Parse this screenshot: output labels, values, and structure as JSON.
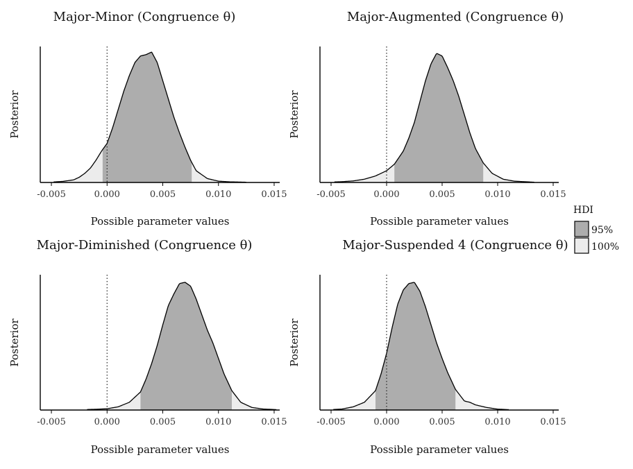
{
  "chart_data": [
    {
      "type": "area",
      "title": "Major-Minor (Congruence θ)",
      "xlabel": "Possible parameter values",
      "ylabel": "Posterior",
      "xlim": [
        -0.006,
        0.0155
      ],
      "xticks": [
        -0.005,
        0.0,
        0.005,
        0.01,
        0.015
      ],
      "xtick_labels": [
        "-0.005",
        "0.000",
        "0.005",
        "0.010",
        "0.015"
      ],
      "reference_line_x": 0,
      "hdi95": [
        -0.0004,
        0.0076
      ],
      "hdi100": [
        -0.0048,
        0.0125
      ],
      "density": {
        "x": [
          -0.0048,
          -0.004,
          -0.003,
          -0.0025,
          -0.002,
          -0.0015,
          -0.001,
          -0.0005,
          0.0,
          0.0005,
          0.001,
          0.0015,
          0.002,
          0.0025,
          0.003,
          0.0035,
          0.004,
          0.0045,
          0.005,
          0.0055,
          0.006,
          0.0065,
          0.007,
          0.0075,
          0.008,
          0.009,
          0.01,
          0.011,
          0.0125
        ],
        "y": [
          0.004,
          0.008,
          0.02,
          0.04,
          0.07,
          0.11,
          0.17,
          0.24,
          0.3,
          0.42,
          0.56,
          0.7,
          0.82,
          0.92,
          0.97,
          0.98,
          1.0,
          0.92,
          0.78,
          0.64,
          0.5,
          0.38,
          0.27,
          0.17,
          0.09,
          0.03,
          0.01,
          0.005,
          0.002
        ]
      }
    },
    {
      "type": "area",
      "title": "Major-Augmented (Congruence θ)",
      "xlabel": "Possible parameter values",
      "ylabel": "Posterior",
      "xlim": [
        -0.006,
        0.0155
      ],
      "xticks": [
        -0.005,
        0.0,
        0.005,
        0.01,
        0.015
      ],
      "xtick_labels": [
        "-0.005",
        "0.000",
        "0.005",
        "0.010",
        "0.015"
      ],
      "reference_line_x": 0,
      "hdi95": [
        0.0007,
        0.0087
      ],
      "hdi100": [
        -0.0047,
        0.0133
      ],
      "density": {
        "x": [
          -0.0047,
          -0.004,
          -0.003,
          -0.002,
          -0.001,
          0.0,
          0.0007,
          0.0015,
          0.002,
          0.0025,
          0.003,
          0.0035,
          0.004,
          0.0045,
          0.005,
          0.0055,
          0.006,
          0.0065,
          0.007,
          0.0075,
          0.008,
          0.0087,
          0.0095,
          0.0105,
          0.0115,
          0.0133
        ],
        "y": [
          0.004,
          0.006,
          0.012,
          0.025,
          0.05,
          0.09,
          0.14,
          0.24,
          0.34,
          0.46,
          0.62,
          0.78,
          0.91,
          0.99,
          0.97,
          0.88,
          0.78,
          0.66,
          0.52,
          0.38,
          0.26,
          0.15,
          0.07,
          0.025,
          0.01,
          0.002
        ]
      }
    },
    {
      "type": "area",
      "title": "Major-Diminished (Congruence θ)",
      "xlabel": "Possible parameter values",
      "ylabel": "Posterior",
      "xlim": [
        -0.006,
        0.0155
      ],
      "xticks": [
        -0.005,
        0.0,
        0.005,
        0.01,
        0.015
      ],
      "xtick_labels": [
        "-0.005",
        "0.000",
        "0.005",
        "0.010",
        "0.015"
      ],
      "reference_line_x": 0,
      "hdi95": [
        0.003,
        0.0112
      ],
      "hdi100": [
        -0.0018,
        0.0152
      ],
      "density": {
        "x": [
          -0.0018,
          -0.001,
          0.0,
          0.001,
          0.002,
          0.003,
          0.0035,
          0.004,
          0.0045,
          0.005,
          0.0055,
          0.006,
          0.0065,
          0.007,
          0.0075,
          0.008,
          0.0085,
          0.009,
          0.0095,
          0.01,
          0.0105,
          0.0112,
          0.012,
          0.013,
          0.014,
          0.0152
        ],
        "y": [
          0.004,
          0.006,
          0.01,
          0.025,
          0.06,
          0.14,
          0.24,
          0.36,
          0.5,
          0.66,
          0.81,
          0.9,
          0.98,
          0.99,
          0.96,
          0.86,
          0.74,
          0.62,
          0.52,
          0.4,
          0.28,
          0.15,
          0.06,
          0.02,
          0.008,
          0.003
        ]
      }
    },
    {
      "type": "area",
      "title": "Major-Suspended 4 (Congruence θ)",
      "xlabel": "Possible parameter values",
      "ylabel": "Posterior",
      "xlim": [
        -0.006,
        0.0155
      ],
      "xticks": [
        -0.005,
        0.0,
        0.005,
        0.01,
        0.015
      ],
      "xtick_labels": [
        "-0.005",
        "0.000",
        "0.005",
        "0.010",
        "0.015"
      ],
      "reference_line_x": 0,
      "hdi95": [
        -0.001,
        0.0062
      ],
      "hdi100": [
        -0.0048,
        0.011
      ],
      "density": {
        "x": [
          -0.0048,
          -0.004,
          -0.003,
          -0.002,
          -0.001,
          -0.0005,
          0.0,
          0.0005,
          0.001,
          0.0015,
          0.002,
          0.0025,
          0.003,
          0.0035,
          0.004,
          0.0045,
          0.005,
          0.0055,
          0.0062,
          0.007,
          0.0075,
          0.008,
          0.009,
          0.01,
          0.011
        ],
        "y": [
          0.004,
          0.008,
          0.025,
          0.06,
          0.15,
          0.28,
          0.44,
          0.64,
          0.82,
          0.93,
          0.98,
          0.99,
          0.92,
          0.8,
          0.66,
          0.52,
          0.4,
          0.29,
          0.16,
          0.07,
          0.06,
          0.04,
          0.02,
          0.007,
          0.003
        ]
      }
    }
  ],
  "legend": {
    "title": "HDI",
    "entries": [
      {
        "label": "95%",
        "color": "#adadad"
      },
      {
        "label": "100%",
        "color": "#ececec"
      }
    ]
  },
  "colors": {
    "hdi95": "#adadad",
    "hdi100": "#ececec",
    "line": "#000000"
  }
}
